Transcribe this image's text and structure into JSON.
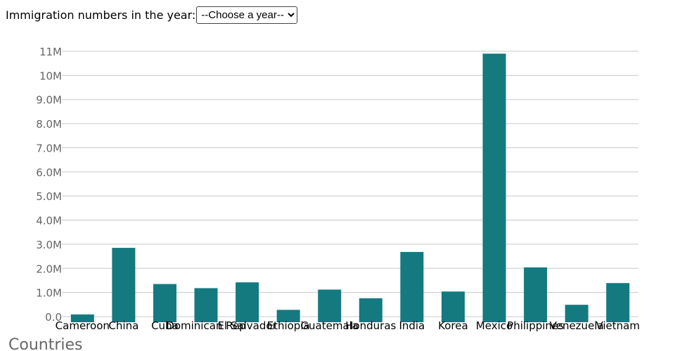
{
  "controls": {
    "label": "Immigration numbers in the year:",
    "select_value": "--Choose a year--"
  },
  "colors": {
    "bar": "#147a80",
    "grid": "#c8c8c8"
  },
  "chart_data": {
    "type": "bar",
    "title": "",
    "xlabel": "Countries",
    "ylabel": "",
    "categories": [
      "Cameroon",
      "China",
      "Cuba",
      "Dominican Rep",
      "El Salvador",
      "Ethiopia",
      "Guatemala",
      "Honduras",
      "India",
      "Korea",
      "Mexico",
      "Philippines",
      "Venezuela",
      "Vietnam"
    ],
    "values": [
      90000,
      2850000,
      1350000,
      1180000,
      1420000,
      280000,
      1120000,
      760000,
      2680000,
      1040000,
      10900000,
      2040000,
      490000,
      1390000
    ],
    "ylim": [
      0,
      11000000
    ],
    "yticks": [
      "0.0",
      "1.0M",
      "2.0M",
      "3.0M",
      "4.0M",
      "5.0M",
      "6.0M",
      "7.0M",
      "8.0M",
      "9.0M",
      "10M",
      "11M"
    ],
    "grid": true
  }
}
